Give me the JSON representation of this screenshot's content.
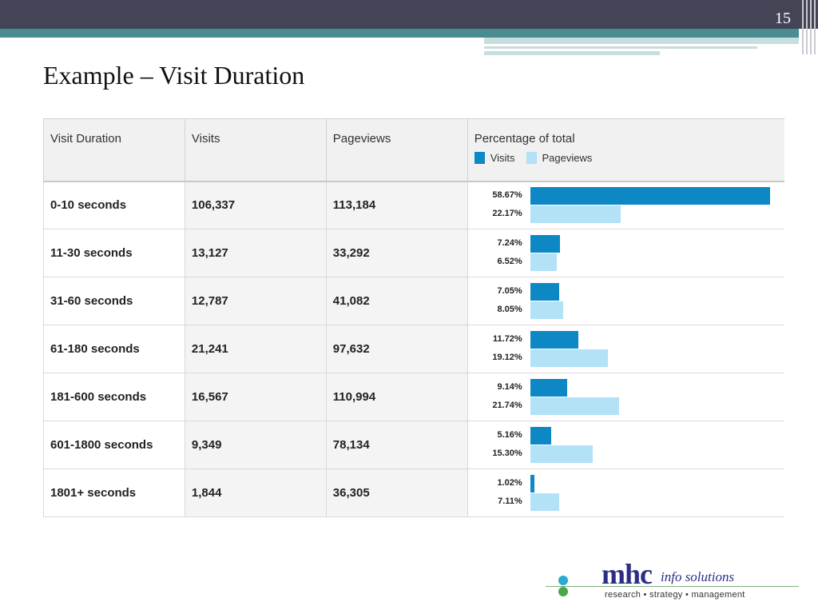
{
  "slide": {
    "page_number": "15",
    "title": "Example – Visit Duration"
  },
  "table": {
    "headers": {
      "duration": "Visit Duration",
      "visits": "Visits",
      "pageviews": "Pageviews",
      "percentage": "Percentage of total"
    },
    "legend": {
      "visits": "Visits",
      "pageviews": "Pageviews"
    },
    "colors": {
      "visits": "#0e87c5",
      "pageviews": "#b3e1f6"
    },
    "rows": [
      {
        "duration": "0-10 seconds",
        "visits": "106,337",
        "pageviews": "113,184",
        "visits_pct_label": "58.67%",
        "pageviews_pct_label": "22.17%",
        "visits_pct": 58.67,
        "pageviews_pct": 22.17
      },
      {
        "duration": "11-30 seconds",
        "visits": "13,127",
        "pageviews": "33,292",
        "visits_pct_label": "7.24%",
        "pageviews_pct_label": "6.52%",
        "visits_pct": 7.24,
        "pageviews_pct": 6.52
      },
      {
        "duration": "31-60 seconds",
        "visits": "12,787",
        "pageviews": "41,082",
        "visits_pct_label": "7.05%",
        "pageviews_pct_label": "8.05%",
        "visits_pct": 7.05,
        "pageviews_pct": 8.05
      },
      {
        "duration": "61-180 seconds",
        "visits": "21,241",
        "pageviews": "97,632",
        "visits_pct_label": "11.72%",
        "pageviews_pct_label": "19.12%",
        "visits_pct": 11.72,
        "pageviews_pct": 19.12
      },
      {
        "duration": "181-600 seconds",
        "visits": "16,567",
        "pageviews": "110,994",
        "visits_pct_label": "9.14%",
        "pageviews_pct_label": "21.74%",
        "visits_pct": 9.14,
        "pageviews_pct": 21.74
      },
      {
        "duration": "601-1800 seconds",
        "visits": "9,349",
        "pageviews": "78,134",
        "visits_pct_label": "5.16%",
        "pageviews_pct_label": "15.30%",
        "visits_pct": 5.16,
        "pageviews_pct": 15.3
      },
      {
        "duration": "1801+ seconds",
        "visits": "1,844",
        "pageviews": "36,305",
        "visits_pct_label": "1.02%",
        "pageviews_pct_label": "7.11%",
        "visits_pct": 1.02,
        "pageviews_pct": 7.11
      }
    ]
  },
  "logo": {
    "brand": "mhc",
    "suffix": "info solutions",
    "tagline": "research • strategy • management"
  }
}
